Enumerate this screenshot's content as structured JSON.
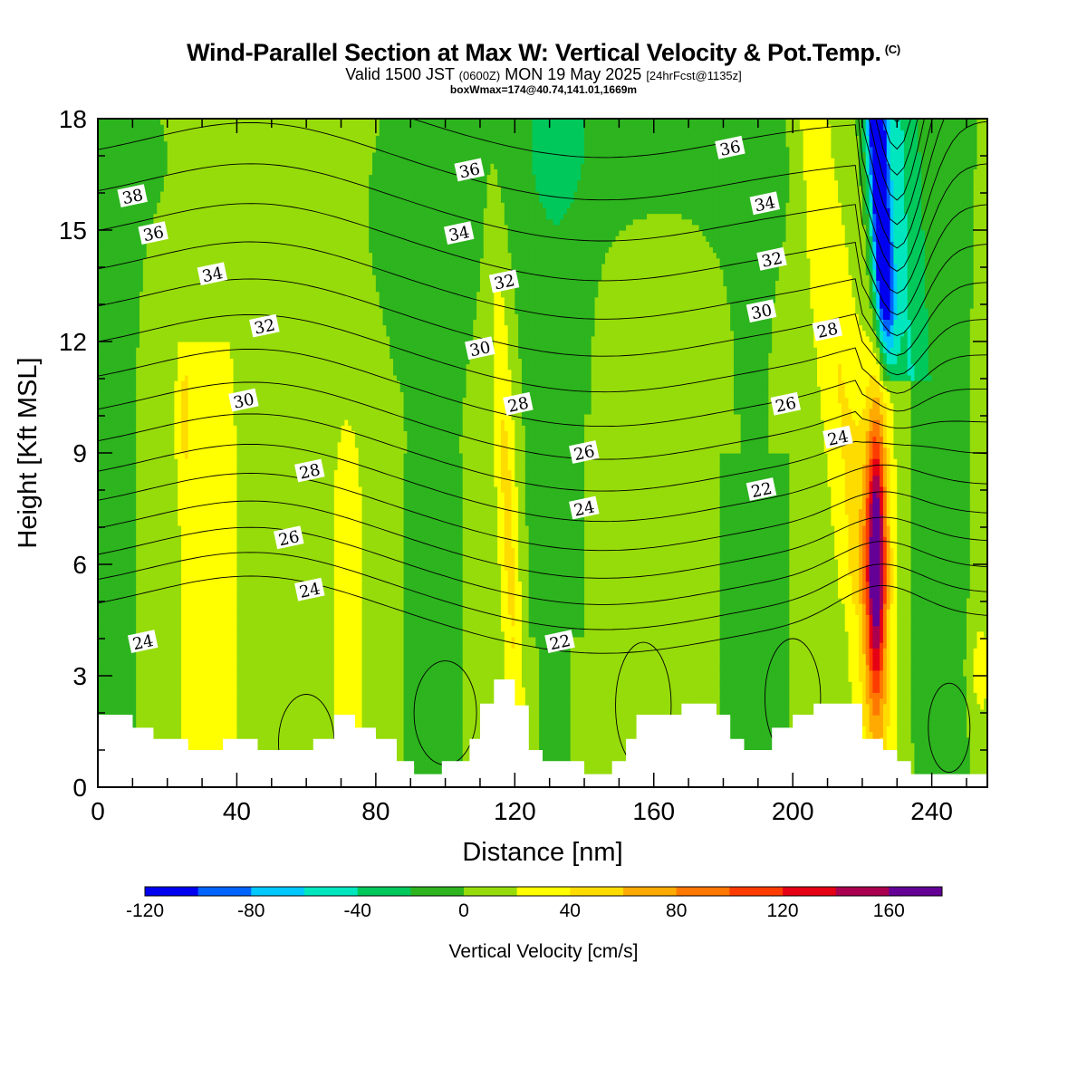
{
  "header": {
    "title": "Wind-Parallel Section at Max W: Vertical Velocity & Pot.Temp.",
    "copyright": "(C)",
    "valid_prefix": "Valid 1500 JST",
    "valid_zulu": "(0600Z)",
    "valid_date": "MON 19 May 2025",
    "forecast": "[24hrFcst@1135z]",
    "boxinfo": "boxWmax=174@40.74,141.01,1669m"
  },
  "chart_data": {
    "type": "heatmap",
    "title": "Wind-Parallel Section at Max W: Vertical Velocity & Pot.Temp.",
    "xlabel": "Distance [nm]",
    "ylabel": "Height [Kft MSL]",
    "xlim": [
      0,
      256
    ],
    "ylim": [
      0,
      18
    ],
    "x_ticks": [
      0,
      40,
      80,
      120,
      160,
      200,
      240
    ],
    "y_ticks": [
      0,
      3,
      6,
      9,
      12,
      15,
      18
    ],
    "colorbar": {
      "label": "Vertical Velocity [cm/s]",
      "ticks": [
        -120,
        -80,
        -40,
        0,
        40,
        80,
        120,
        160
      ],
      "levels": [
        -120,
        -100,
        -80,
        -60,
        -40,
        -20,
        0,
        20,
        40,
        60,
        80,
        100,
        120,
        140,
        160,
        180
      ],
      "colors": [
        "#0000f0",
        "#0064ff",
        "#00c8ff",
        "#00e6be",
        "#00c85a",
        "#2db41e",
        "#96dc0a",
        "#ffff00",
        "#ffdc00",
        "#ffaa00",
        "#ff7800",
        "#ff3c00",
        "#e60014",
        "#aa0050",
        "#640096"
      ]
    },
    "field_regions": [
      {
        "name": "updraft-max",
        "x": [
          222,
          228
        ],
        "y": [
          2.5,
          9.8
        ],
        "w_range": [
          40,
          174
        ]
      },
      {
        "name": "updraft-band-120",
        "x": [
          115,
          126
        ],
        "y": [
          2.5,
          14
        ],
        "w_range": [
          20,
          60
        ]
      },
      {
        "name": "updraft-band-215",
        "x": [
          196,
          224
        ],
        "y": [
          6,
          18
        ],
        "w_range": [
          20,
          60
        ]
      },
      {
        "name": "downdraft-upper",
        "x": [
          224,
          232
        ],
        "y": [
          11,
          18
        ],
        "w_range": [
          -120,
          -40
        ]
      },
      {
        "name": "downdraft-upper-left",
        "x": [
          0,
          14
        ],
        "y": [
          14,
          18
        ],
        "w_range": [
          -40,
          -20
        ]
      },
      {
        "name": "downdraft-upper-mid",
        "x": [
          120,
          190
        ],
        "y": [
          14.5,
          18
        ],
        "w_range": [
          -40,
          -20
        ]
      }
    ],
    "theta_contour_labels": [
      {
        "value": "38",
        "x": 10,
        "y": 15.9
      },
      {
        "value": "36",
        "x": 16,
        "y": 14.9
      },
      {
        "value": "34",
        "x": 33,
        "y": 13.8
      },
      {
        "value": "32",
        "x": 48,
        "y": 12.4
      },
      {
        "value": "30",
        "x": 42,
        "y": 10.4
      },
      {
        "value": "28",
        "x": 61,
        "y": 8.5
      },
      {
        "value": "26",
        "x": 55,
        "y": 6.7
      },
      {
        "value": "24",
        "x": 61,
        "y": 5.3
      },
      {
        "value": "24",
        "x": 13,
        "y": 3.9
      },
      {
        "value": "36",
        "x": 107,
        "y": 16.6
      },
      {
        "value": "34",
        "x": 104,
        "y": 14.9
      },
      {
        "value": "32",
        "x": 117,
        "y": 13.6
      },
      {
        "value": "30",
        "x": 110,
        "y": 11.8
      },
      {
        "value": "28",
        "x": 121,
        "y": 10.3
      },
      {
        "value": "26",
        "x": 140,
        "y": 9.0
      },
      {
        "value": "24",
        "x": 140,
        "y": 7.5
      },
      {
        "value": "22",
        "x": 133,
        "y": 3.9
      },
      {
        "value": "36",
        "x": 182,
        "y": 17.2
      },
      {
        "value": "34",
        "x": 192,
        "y": 15.7
      },
      {
        "value": "32",
        "x": 194,
        "y": 14.2
      },
      {
        "value": "30",
        "x": 191,
        "y": 12.8
      },
      {
        "value": "28",
        "x": 210,
        "y": 12.3
      },
      {
        "value": "26",
        "x": 198,
        "y": 10.3
      },
      {
        "value": "24",
        "x": 213,
        "y": 9.4
      },
      {
        "value": "22",
        "x": 191,
        "y": 8.0
      }
    ],
    "terrain_kft": [
      [
        0,
        1.95
      ],
      [
        10,
        1.95
      ],
      [
        10,
        1.6
      ],
      [
        16,
        1.6
      ],
      [
        16,
        1.3
      ],
      [
        26,
        1.3
      ],
      [
        26,
        1.0
      ],
      [
        36,
        1.0
      ],
      [
        36,
        1.3
      ],
      [
        46,
        1.3
      ],
      [
        46,
        1.0
      ],
      [
        62,
        1.0
      ],
      [
        62,
        1.3
      ],
      [
        68,
        1.3
      ],
      [
        68,
        1.95
      ],
      [
        74,
        1.95
      ],
      [
        74,
        1.6
      ],
      [
        80,
        1.6
      ],
      [
        80,
        1.3
      ],
      [
        86,
        1.3
      ],
      [
        86,
        0.7
      ],
      [
        91,
        0.7
      ],
      [
        91,
        0.35
      ],
      [
        99,
        0.35
      ],
      [
        99,
        0.7
      ],
      [
        107,
        0.7
      ],
      [
        107,
        1.3
      ],
      [
        110,
        1.3
      ],
      [
        110,
        2.25
      ],
      [
        114,
        2.25
      ],
      [
        114,
        2.9
      ],
      [
        120,
        2.9
      ],
      [
        120,
        2.2
      ],
      [
        124,
        2.2
      ],
      [
        124,
        1.0
      ],
      [
        128,
        1.0
      ],
      [
        128,
        0.7
      ],
      [
        140,
        0.7
      ],
      [
        140,
        0.35
      ],
      [
        148,
        0.35
      ],
      [
        148,
        0.7
      ],
      [
        152,
        0.7
      ],
      [
        152,
        1.3
      ],
      [
        155,
        1.3
      ],
      [
        155,
        1.95
      ],
      [
        168,
        1.95
      ],
      [
        168,
        2.25
      ],
      [
        178,
        2.25
      ],
      [
        178,
        1.95
      ],
      [
        182,
        1.95
      ],
      [
        182,
        1.3
      ],
      [
        186,
        1.3
      ],
      [
        186,
        1.0
      ],
      [
        194,
        1.0
      ],
      [
        194,
        1.6
      ],
      [
        200,
        1.6
      ],
      [
        200,
        1.95
      ],
      [
        206,
        1.95
      ],
      [
        206,
        2.25
      ],
      [
        220,
        2.25
      ],
      [
        220,
        1.3
      ],
      [
        226,
        1.3
      ],
      [
        226,
        1.0
      ],
      [
        230,
        1.0
      ],
      [
        230,
        0.7
      ],
      [
        234,
        0.7
      ],
      [
        234,
        0.35
      ],
      [
        256,
        0.35
      ]
    ]
  }
}
